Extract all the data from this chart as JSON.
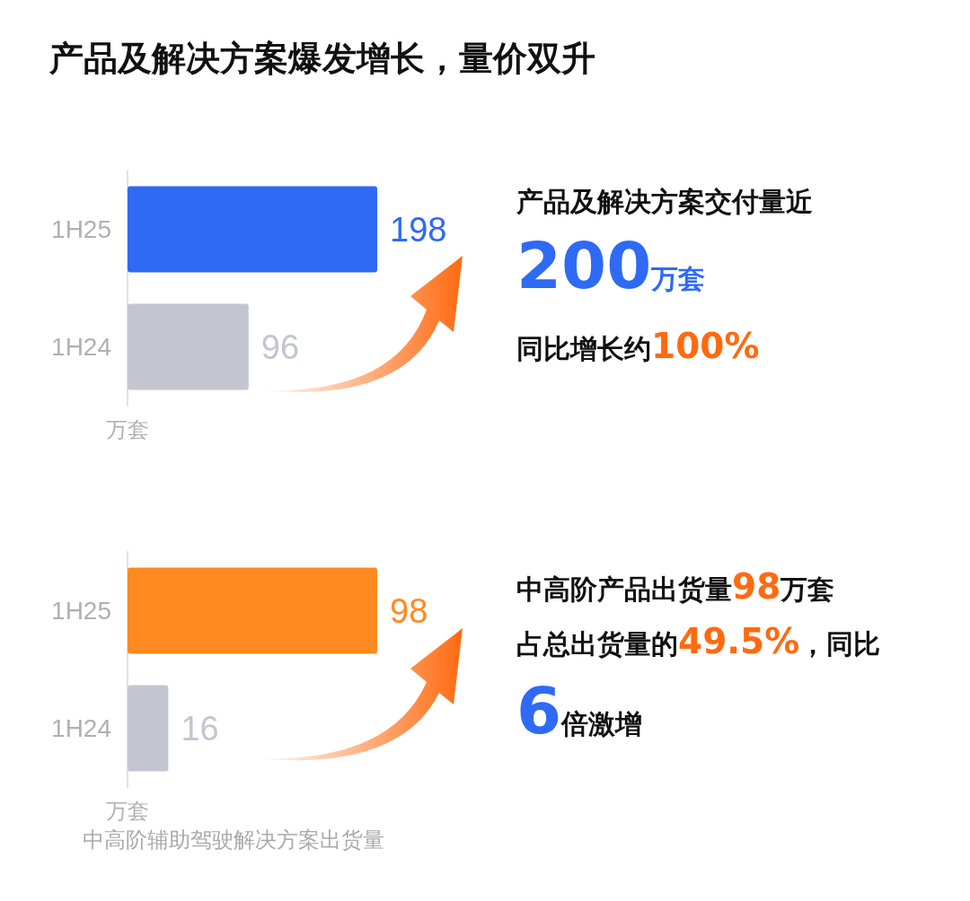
{
  "chart_data": [
    {
      "type": "bar",
      "title": "产品及解决方案爆发增长，量价双升",
      "orientation": "horizontal",
      "categories": [
        "1H25",
        "1H24"
      ],
      "values": [
        198,
        96
      ],
      "colors": [
        "#2f6af5",
        "#c3c6d1"
      ],
      "ylabel": "万套",
      "data_labels": true,
      "tick_labels": "y"
    },
    {
      "type": "other",
      "title": "产品及解决方案交付量近",
      "annotations": [
        "200万套",
        "同比增长约100%"
      ]
    },
    {
      "type": "bar",
      "orientation": "horizontal",
      "categories": [
        "1H25",
        "1H24"
      ],
      "values": [
        98,
        16
      ],
      "colors": [
        "#ff8a1f",
        "#c3c6d1"
      ],
      "ylabel": "万套",
      "data_labels": true,
      "tick_labels": "y",
      "annotations": [
        "中高阶辅助驾驶解决方案出货量"
      ]
    },
    {
      "type": "other",
      "annotations": [
        "中高阶产品出货量98万套",
        "占总出货量的49.5%，同比",
        "6倍激增"
      ]
    }
  ]
}
